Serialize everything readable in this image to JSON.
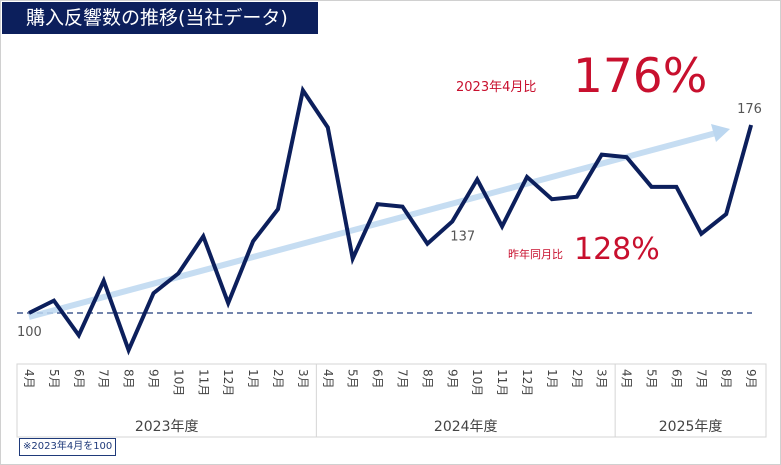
{
  "title": "購入反響数の推移(当社データ)",
  "footnote": "※2023年4月を100",
  "colors": {
    "line": "#0c1f5c",
    "trend_arrow": "#bcd7f0",
    "accent_red": "#c8102e",
    "baseline": "#1f3a7a"
  },
  "callouts": {
    "vs_base_label": "2023年4月比",
    "vs_base_value": "176%",
    "yoy_label": "昨年同月比",
    "yoy_value": "128%"
  },
  "chart_data": {
    "type": "line",
    "categories": [
      "4月",
      "5月",
      "6月",
      "7月",
      "8月",
      "9月",
      "10月",
      "11月",
      "12月",
      "1月",
      "2月",
      "3月",
      "4月",
      "5月",
      "6月",
      "7月",
      "8月",
      "9月",
      "10月",
      "11月",
      "12月",
      "1月",
      "2月",
      "3月",
      "4月",
      "5月",
      "6月",
      "7月",
      "8月",
      "9月"
    ],
    "groups": [
      {
        "label": "2023年度",
        "count": 12
      },
      {
        "label": "2024年度",
        "count": 12
      },
      {
        "label": "2025年度",
        "count": 6
      }
    ],
    "values": [
      100,
      105,
      91,
      113,
      85,
      108,
      116,
      131,
      104,
      129,
      142,
      190,
      175,
      122,
      144,
      143,
      128,
      137,
      154,
      135,
      155,
      146,
      147,
      164,
      163,
      151,
      151,
      132,
      140,
      176
    ],
    "data_labels": [
      {
        "index": 0,
        "text": "100"
      },
      {
        "index": 17,
        "text": "137"
      },
      {
        "index": 29,
        "text": "176"
      }
    ],
    "baseline": 100,
    "trend_arrow": true,
    "ylim": [
      80,
      195
    ],
    "grid": false
  }
}
